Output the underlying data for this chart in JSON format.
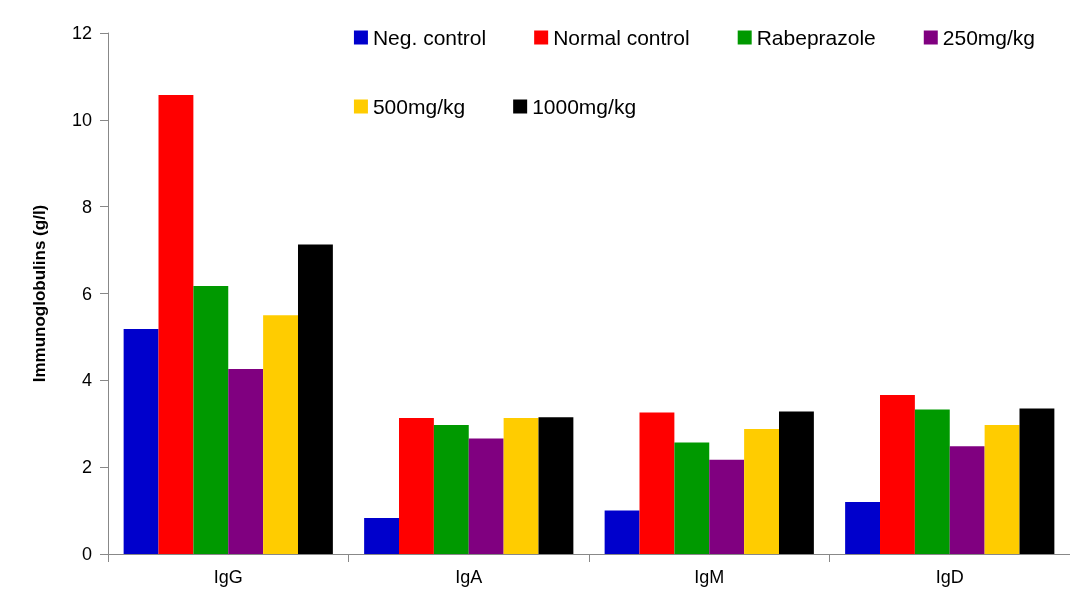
{
  "chart_data": {
    "type": "bar",
    "ylabel": "Immunoglobulins (g/l)",
    "categories": [
      "IgG",
      "IgA",
      "IgM",
      "IgD"
    ],
    "series": [
      {
        "name": "Neg. control",
        "color": "#0000cc",
        "values": [
          5.18,
          0.83,
          1.0,
          1.2
        ]
      },
      {
        "name": "Normal control",
        "color": "#ff0000",
        "values": [
          10.57,
          3.13,
          3.26,
          3.66
        ]
      },
      {
        "name": "Rabeprazole",
        "color": "#009900",
        "values": [
          6.17,
          2.97,
          2.57,
          3.33
        ]
      },
      {
        "name": "250mg/kg",
        "color": "#800080",
        "values": [
          4.26,
          2.66,
          2.17,
          2.48
        ]
      },
      {
        "name": "500mg/kg",
        "color": "#ffcc00",
        "values": [
          5.5,
          3.13,
          2.88,
          2.97
        ]
      },
      {
        "name": "1000mg/kg",
        "color": "#000000",
        "values": [
          7.13,
          3.15,
          3.28,
          3.35
        ]
      }
    ],
    "ylim": [
      0,
      12
    ],
    "yticks": [
      0,
      2,
      4,
      6,
      8,
      10,
      12
    ],
    "grid": false,
    "legend": "top right"
  }
}
